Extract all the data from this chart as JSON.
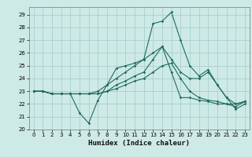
{
  "xlabel": "Humidex (Indice chaleur)",
  "xlim": [
    -0.5,
    23.5
  ],
  "ylim": [
    20,
    29.6
  ],
  "yticks": [
    20,
    21,
    22,
    23,
    24,
    25,
    26,
    27,
    28,
    29
  ],
  "xticks": [
    0,
    1,
    2,
    3,
    4,
    5,
    6,
    7,
    8,
    9,
    10,
    11,
    12,
    13,
    14,
    15,
    16,
    17,
    18,
    19,
    20,
    21,
    22,
    23
  ],
  "background_color": "#ceeae6",
  "grid_color": "#aacfcc",
  "line_color": "#1e6b5e",
  "lines": [
    [
      23.0,
      23.0,
      22.8,
      22.8,
      22.8,
      21.3,
      20.5,
      22.3,
      23.5,
      24.8,
      25.0,
      25.2,
      25.5,
      28.3,
      28.5,
      29.2,
      27.0,
      25.0,
      24.2,
      24.7,
      23.5,
      22.5,
      21.6,
      22.0
    ],
    [
      23.0,
      23.0,
      22.8,
      22.8,
      22.8,
      22.8,
      22.8,
      22.8,
      23.0,
      23.2,
      23.5,
      23.8,
      24.0,
      24.5,
      25.0,
      25.2,
      24.0,
      23.0,
      22.5,
      22.3,
      22.2,
      22.0,
      22.0,
      22.2
    ],
    [
      23.0,
      23.0,
      22.8,
      22.8,
      22.8,
      22.8,
      22.8,
      23.0,
      23.5,
      24.0,
      24.5,
      25.0,
      25.5,
      26.0,
      26.5,
      25.5,
      24.5,
      24.0,
      24.0,
      24.5,
      23.5,
      22.5,
      22.0,
      22.2
    ],
    [
      23.0,
      23.0,
      22.8,
      22.8,
      22.8,
      22.8,
      22.8,
      22.8,
      23.0,
      23.5,
      23.8,
      24.2,
      24.5,
      25.5,
      26.5,
      24.5,
      22.5,
      22.5,
      22.3,
      22.2,
      22.0,
      22.0,
      21.8,
      22.2
    ]
  ]
}
